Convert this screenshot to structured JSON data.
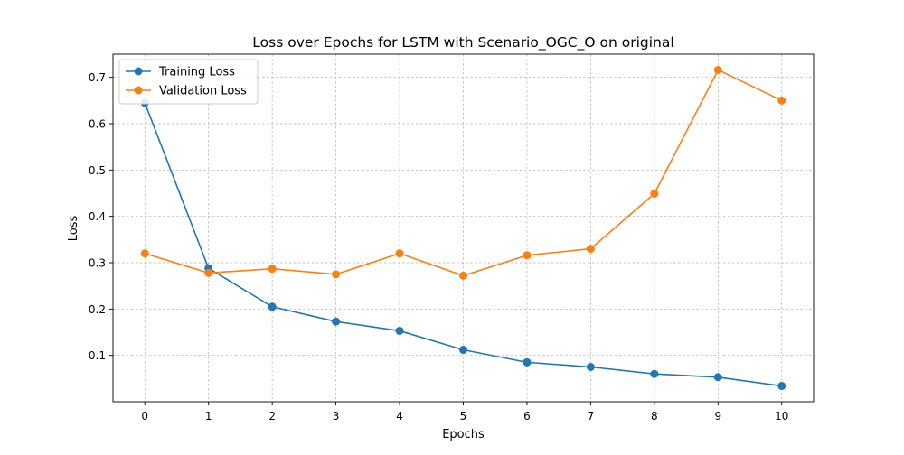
{
  "chart_data": {
    "type": "line",
    "title": "Loss over Epochs for LSTM with Scenario_OGC_O on original",
    "xlabel": "Epochs",
    "ylabel": "Loss",
    "x": [
      0,
      1,
      2,
      3,
      4,
      5,
      6,
      7,
      8,
      9,
      10
    ],
    "x_ticks": [
      "0",
      "1",
      "2",
      "3",
      "4",
      "5",
      "6",
      "7",
      "8",
      "9",
      "10"
    ],
    "y_ticks": [
      "0.1",
      "0.2",
      "0.3",
      "0.4",
      "0.5",
      "0.6",
      "0.7"
    ],
    "y_tick_values": [
      0.1,
      0.2,
      0.3,
      0.4,
      0.5,
      0.6,
      0.7
    ],
    "xlim": [
      -0.5,
      10.5
    ],
    "ylim": [
      0.0,
      0.75
    ],
    "grid": true,
    "legend_position": "top-left",
    "series": [
      {
        "name": "Training Loss",
        "color": "#1f77b4",
        "marker": "circle",
        "values": [
          0.645,
          0.288,
          0.205,
          0.173,
          0.153,
          0.112,
          0.085,
          0.075,
          0.06,
          0.053,
          0.034
        ]
      },
      {
        "name": "Validation Loss",
        "color": "#ff7f0e",
        "marker": "circle",
        "values": [
          0.32,
          0.278,
          0.287,
          0.275,
          0.32,
          0.272,
          0.316,
          0.33,
          0.449,
          0.716,
          0.65
        ]
      }
    ]
  }
}
